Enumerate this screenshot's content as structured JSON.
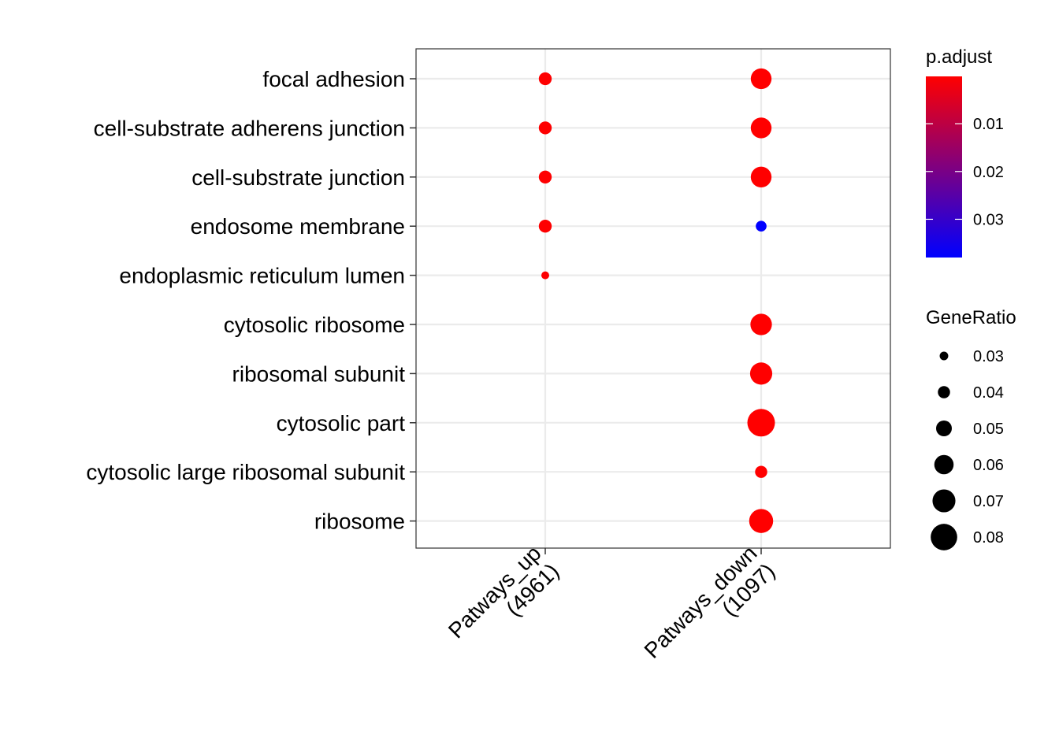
{
  "chart_data": {
    "type": "scatter",
    "title": "",
    "xlabel": "",
    "ylabel": "",
    "x_categories": [
      "Patways_up\n(4961)",
      "Patways_down\n(1097)"
    ],
    "y_categories": [
      "focal adhesion",
      "cell-substrate adherens junction",
      "cell-substrate junction",
      "endosome membrane",
      "endoplasmic reticulum lumen",
      "cytosolic ribosome",
      "ribosomal subunit",
      "cytosolic part",
      "cytosolic large ribosomal subunit",
      "ribosome"
    ],
    "points": [
      {
        "x": "Patways_up\n(4961)",
        "y": "focal adhesion",
        "GeneRatio": 0.042,
        "p_adjust": 0.0002
      },
      {
        "x": "Patways_up\n(4961)",
        "y": "cell-substrate adherens junction",
        "GeneRatio": 0.042,
        "p_adjust": 0.0002
      },
      {
        "x": "Patways_up\n(4961)",
        "y": "cell-substrate junction",
        "GeneRatio": 0.042,
        "p_adjust": 0.0002
      },
      {
        "x": "Patways_up\n(4961)",
        "y": "endosome membrane",
        "GeneRatio": 0.042,
        "p_adjust": 0.0003
      },
      {
        "x": "Patways_up\n(4961)",
        "y": "endoplasmic reticulum lumen",
        "GeneRatio": 0.028,
        "p_adjust": 0.0004
      },
      {
        "x": "Patways_down\n(1097)",
        "y": "focal adhesion",
        "GeneRatio": 0.064,
        "p_adjust": 0.0001
      },
      {
        "x": "Patways_down\n(1097)",
        "y": "cell-substrate adherens junction",
        "GeneRatio": 0.064,
        "p_adjust": 0.0001
      },
      {
        "x": "Patways_down\n(1097)",
        "y": "cell-substrate junction",
        "GeneRatio": 0.064,
        "p_adjust": 0.0001
      },
      {
        "x": "Patways_down\n(1097)",
        "y": "endosome membrane",
        "GeneRatio": 0.036,
        "p_adjust": 0.038
      },
      {
        "x": "Patways_down\n(1097)",
        "y": "cytosolic ribosome",
        "GeneRatio": 0.066,
        "p_adjust": 0.0001
      },
      {
        "x": "Patways_down\n(1097)",
        "y": "ribosomal subunit",
        "GeneRatio": 0.068,
        "p_adjust": 0.0001
      },
      {
        "x": "Patways_down\n(1097)",
        "y": "cytosolic part",
        "GeneRatio": 0.083,
        "p_adjust": 0.0001
      },
      {
        "x": "Patways_down\n(1097)",
        "y": "cytosolic large ribosomal subunit",
        "GeneRatio": 0.04,
        "p_adjust": 0.0001
      },
      {
        "x": "Patways_down\n(1097)",
        "y": "ribosome",
        "GeneRatio": 0.073,
        "p_adjust": 0.0001
      }
    ],
    "color_legend": {
      "title": "p.adjust",
      "ticks": [
        "0.01",
        "0.02",
        "0.03"
      ],
      "tick_values": [
        0.01,
        0.02,
        0.03
      ],
      "range": [
        0.0001,
        0.038
      ],
      "low_color": "#FF0000",
      "high_color": "#0000FF"
    },
    "size_legend": {
      "title": "GeneRatio",
      "labels": [
        "0.03",
        "0.04",
        "0.05",
        "0.06",
        "0.07",
        "0.08"
      ],
      "values": [
        0.03,
        0.04,
        0.05,
        0.06,
        0.07,
        0.08
      ]
    },
    "grid": true,
    "legend_position": "right"
  }
}
